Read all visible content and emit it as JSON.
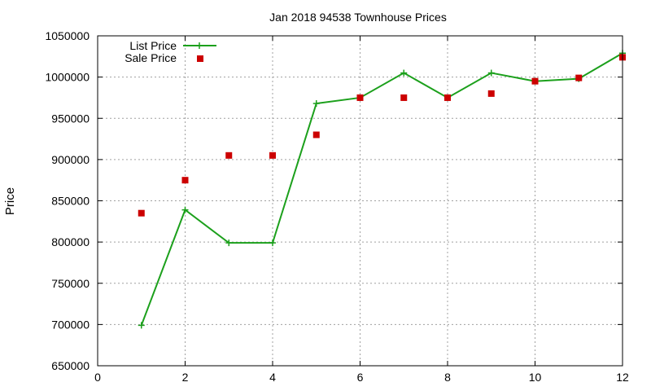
{
  "chart_data": {
    "type": "line",
    "title": "Jan 2018 94538 Townhouse Prices",
    "xlabel": "",
    "ylabel": "Price",
    "xlim": [
      0,
      12
    ],
    "ylim": [
      650000,
      1050000
    ],
    "x_ticks": [
      0,
      2,
      4,
      6,
      8,
      10,
      12
    ],
    "y_ticks": [
      650000,
      700000,
      750000,
      800000,
      850000,
      900000,
      950000,
      1000000,
      1050000
    ],
    "grid": true,
    "legend_position": "top-left",
    "series": [
      {
        "name": "List Price",
        "style": "line+cross",
        "color": "#1ca01c",
        "x": [
          1,
          2,
          3,
          4,
          5,
          6,
          7,
          8,
          9,
          10,
          11,
          12
        ],
        "y": [
          699000,
          839000,
          799000,
          799000,
          968000,
          975000,
          1005000,
          975000,
          1005000,
          995000,
          998000,
          1029000
        ]
      },
      {
        "name": "Sale Price",
        "style": "square-marker",
        "color": "#cc0000",
        "x": [
          1,
          2,
          3,
          4,
          5,
          6,
          7,
          8,
          9,
          10,
          11,
          12
        ],
        "y": [
          835000,
          875000,
          905000,
          905000,
          930000,
          975000,
          975000,
          975000,
          980000,
          995000,
          999000,
          1024000
        ]
      }
    ]
  }
}
